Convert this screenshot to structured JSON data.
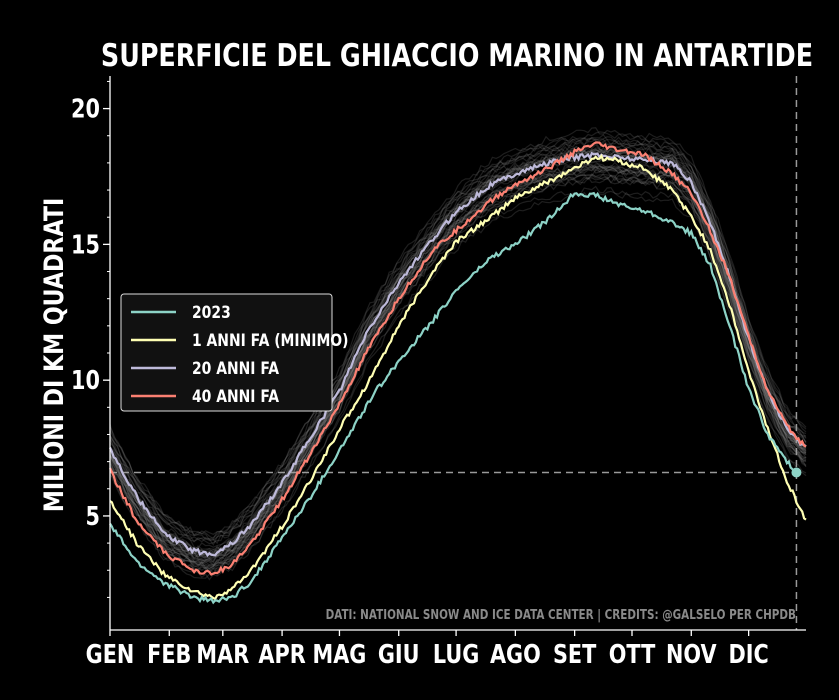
{
  "chart_data": {
    "type": "line",
    "title": "SUPERFICIE DEL GHIACCIO MARINO IN ANTARTIDE",
    "ylabel": "MILIONI DI KM QUADRATI",
    "xlabel": "",
    "ylim": [
      0.8,
      21.2
    ],
    "yticks": [
      5,
      10,
      15,
      20
    ],
    "x_axis": "day of year (1-365)",
    "xlim": [
      1,
      365
    ],
    "month_ticks": [
      {
        "label": "GEN",
        "day": 1
      },
      {
        "label": "FEB",
        "day": 32
      },
      {
        "label": "MAR",
        "day": 60
      },
      {
        "label": "APR",
        "day": 91
      },
      {
        "label": "MAG",
        "day": 121
      },
      {
        "label": "GIU",
        "day": 152
      },
      {
        "label": "LUG",
        "day": 182
      },
      {
        "label": "AGO",
        "day": 213
      },
      {
        "label": "SET",
        "day": 244
      },
      {
        "label": "OTT",
        "day": 274
      },
      {
        "label": "NOV",
        "day": 305
      },
      {
        "label": "DIC",
        "day": 335
      }
    ],
    "reference_line_y": 6.6,
    "reference_line_x": 360,
    "background_years": "faint grey lines, one per past year",
    "legend_position": "center-left",
    "series": [
      {
        "name": "2023",
        "color": "#8dd3c7",
        "points": [
          [
            1,
            4.7
          ],
          [
            15,
            3.3
          ],
          [
            30,
            2.5
          ],
          [
            45,
            2.0
          ],
          [
            55,
            1.85
          ],
          [
            65,
            2.0
          ],
          [
            75,
            2.6
          ],
          [
            91,
            4.2
          ],
          [
            105,
            5.6
          ],
          [
            121,
            7.4
          ],
          [
            140,
            9.6
          ],
          [
            152,
            10.7
          ],
          [
            170,
            12.2
          ],
          [
            182,
            13.3
          ],
          [
            200,
            14.5
          ],
          [
            213,
            15.0
          ],
          [
            230,
            15.9
          ],
          [
            244,
            16.9
          ],
          [
            255,
            16.8
          ],
          [
            270,
            16.4
          ],
          [
            282,
            16.2
          ],
          [
            295,
            15.8
          ],
          [
            305,
            15.4
          ],
          [
            315,
            14.2
          ],
          [
            325,
            12.0
          ],
          [
            335,
            9.7
          ],
          [
            345,
            8.0
          ],
          [
            355,
            7.0
          ],
          [
            360,
            6.6
          ]
        ],
        "endpoint_marker": true
      },
      {
        "name": "1 ANNI FA (MINIMO)",
        "color": "#ffffb3",
        "points": [
          [
            1,
            5.6
          ],
          [
            15,
            4.0
          ],
          [
            30,
            2.8
          ],
          [
            45,
            2.2
          ],
          [
            55,
            2.0
          ],
          [
            65,
            2.3
          ],
          [
            75,
            3.0
          ],
          [
            91,
            4.6
          ],
          [
            105,
            6.2
          ],
          [
            121,
            8.2
          ],
          [
            135,
            9.8
          ],
          [
            152,
            12.0
          ],
          [
            170,
            14.0
          ],
          [
            182,
            15.1
          ],
          [
            200,
            16.0
          ],
          [
            213,
            16.7
          ],
          [
            230,
            17.3
          ],
          [
            244,
            17.8
          ],
          [
            255,
            18.2
          ],
          [
            265,
            18.1
          ],
          [
            280,
            17.8
          ],
          [
            295,
            17.0
          ],
          [
            305,
            16.0
          ],
          [
            315,
            14.8
          ],
          [
            325,
            12.8
          ],
          [
            335,
            10.3
          ],
          [
            345,
            8.2
          ],
          [
            355,
            6.3
          ],
          [
            365,
            4.8
          ]
        ]
      },
      {
        "name": "20 ANNI FA",
        "color": "#bebada",
        "points": [
          [
            1,
            7.5
          ],
          [
            15,
            5.7
          ],
          [
            30,
            4.3
          ],
          [
            45,
            3.7
          ],
          [
            55,
            3.6
          ],
          [
            65,
            4.0
          ],
          [
            75,
            4.7
          ],
          [
            91,
            6.2
          ],
          [
            105,
            7.8
          ],
          [
            121,
            9.6
          ],
          [
            135,
            11.7
          ],
          [
            152,
            13.6
          ],
          [
            170,
            15.2
          ],
          [
            182,
            16.2
          ],
          [
            200,
            17.2
          ],
          [
            213,
            17.6
          ],
          [
            230,
            18.0
          ],
          [
            244,
            18.2
          ],
          [
            255,
            18.3
          ],
          [
            270,
            18.2
          ],
          [
            282,
            18.1
          ],
          [
            295,
            18.0
          ],
          [
            305,
            17.3
          ],
          [
            315,
            15.8
          ],
          [
            325,
            13.8
          ],
          [
            335,
            11.5
          ],
          [
            345,
            9.6
          ],
          [
            355,
            8.2
          ],
          [
            365,
            7.5
          ]
        ]
      },
      {
        "name": "40 ANNI FA",
        "color": "#fb8072",
        "points": [
          [
            1,
            6.7
          ],
          [
            15,
            4.8
          ],
          [
            30,
            3.6
          ],
          [
            45,
            3.0
          ],
          [
            55,
            2.9
          ],
          [
            65,
            3.2
          ],
          [
            75,
            4.0
          ],
          [
            91,
            5.6
          ],
          [
            105,
            7.2
          ],
          [
            121,
            9.1
          ],
          [
            135,
            11.0
          ],
          [
            152,
            13.0
          ],
          [
            170,
            14.8
          ],
          [
            182,
            15.5
          ],
          [
            200,
            16.6
          ],
          [
            213,
            17.2
          ],
          [
            230,
            17.8
          ],
          [
            244,
            18.4
          ],
          [
            255,
            18.7
          ],
          [
            265,
            18.5
          ],
          [
            280,
            18.3
          ],
          [
            295,
            17.6
          ],
          [
            305,
            16.9
          ],
          [
            315,
            15.5
          ],
          [
            325,
            13.8
          ],
          [
            335,
            11.6
          ],
          [
            345,
            9.6
          ],
          [
            355,
            8.3
          ],
          [
            365,
            7.5
          ]
        ]
      }
    ]
  },
  "footer": {
    "credits": "DATI: NATIONAL SNOW AND ICE DATA CENTER | CREDITS: @GALSELO PER CHPDB"
  },
  "colors": {
    "background": "#000000",
    "axis": "#ffffff",
    "reference": "#9a9a9a",
    "history": "#888888"
  }
}
